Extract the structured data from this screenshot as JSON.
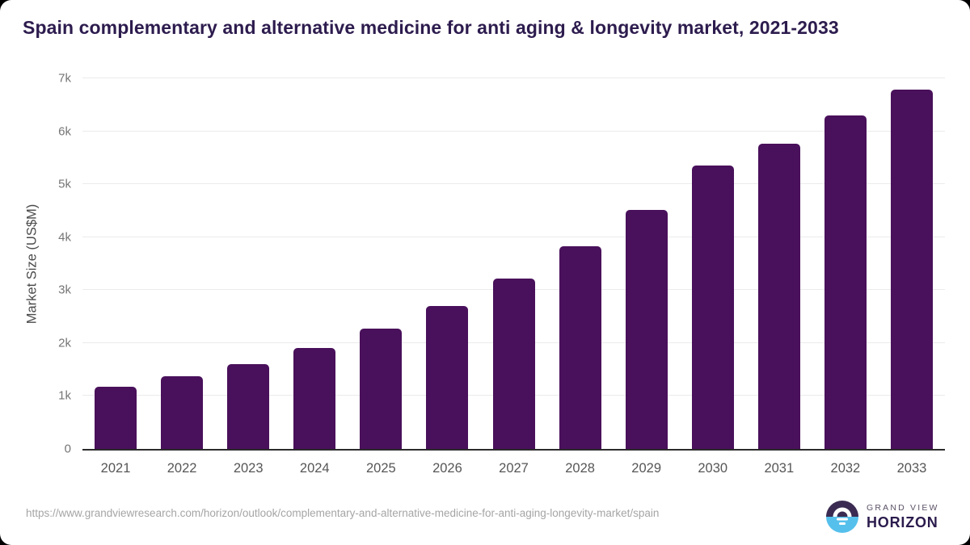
{
  "page": {
    "background_color": "#000000",
    "card_color": "#ffffff",
    "accent_color": "#49105b"
  },
  "chart_data": {
    "type": "bar",
    "title": "Spain complementary and alternative medicine for anti aging & longevity market, 2021-2033",
    "xlabel": "",
    "ylabel": "Market Size (US$M)",
    "categories": [
      "2021",
      "2022",
      "2023",
      "2024",
      "2025",
      "2026",
      "2027",
      "2028",
      "2029",
      "2030",
      "2031",
      "2032",
      "2033"
    ],
    "values": [
      1170,
      1370,
      1600,
      1900,
      2280,
      2700,
      3220,
      3830,
      4520,
      5350,
      5760,
      6300,
      6780
    ],
    "unit": "US$M",
    "ylim": [
      0,
      7000
    ],
    "ytick_step": 1000,
    "ytick_labels": [
      "0",
      "1k",
      "2k",
      "3k",
      "4k",
      "5k",
      "6k",
      "7k"
    ],
    "grid": "horizontal",
    "legend": "none",
    "bar_color": "#49105b",
    "gridline_color": "#ebebeb",
    "axis_line_color": "#2b2b2b"
  },
  "footer": {
    "source_url": "https://www.grandviewresearch.com/horizon/outlook/complementary-and-alternative-medicine-for-anti-aging-longevity-market/spain",
    "logo": {
      "top": "GRAND VIEW",
      "bottom": "HORIZON",
      "icon": "horizon-sun-circle-icon",
      "icon_dark_color": "#3b2b52",
      "icon_blue_color": "#56c0ec"
    }
  }
}
